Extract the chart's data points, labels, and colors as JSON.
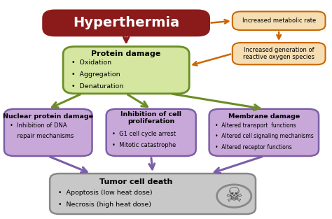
{
  "title": "Hyperthermia",
  "title_bg": "#8B1A1A",
  "title_text_color": "white",
  "protein_damage_title": "Protein damage",
  "protein_damage_items": [
    "Oxidation",
    "Aggregation",
    "Denaturation"
  ],
  "protein_damage_bg": "#d4e6a0",
  "protein_damage_border": "#6b8e23",
  "metabolic_rate_text": "Increased metabolic rate",
  "metabolic_rate_bg": "#f5deb3",
  "metabolic_rate_border": "#cc6600",
  "reactive_oxygen_text": "Increased generation of\nreactive oxygen species",
  "reactive_oxygen_bg": "#f5deb3",
  "reactive_oxygen_border": "#cc6600",
  "nuclear_title": "Nuclear protein damage",
  "nuclear_items": [
    "Inhibition of DNA\nrepair mechanisms"
  ],
  "nuclear_bg": "#c8a8d8",
  "nuclear_border": "#7b5ea7",
  "inhibition_title": "Inhibition of cell\nproliferation",
  "inhibition_items": [
    "G1 cell cycle arrest",
    "Mitotic catastrophe"
  ],
  "inhibition_bg": "#c8a8d8",
  "inhibition_border": "#7b5ea7",
  "membrane_title": "Membrane damage",
  "membrane_items": [
    "Altered transport  functions",
    "Altered cell signaling mechanisms",
    "Altered receptor functions"
  ],
  "membrane_bg": "#c8a8d8",
  "membrane_border": "#7b5ea7",
  "tumor_title": "Tumor cell death",
  "tumor_items": [
    "Apoptosis (low heat dose)",
    "Necrosis (high heat dose)"
  ],
  "tumor_bg": "#c8c8c8",
  "tumor_border": "#888888",
  "arrow_dark_red": "#8B1A1A",
  "arrow_green": "#6b8e23",
  "arrow_purple": "#7b5ea7",
  "arrow_orange": "#cc6600",
  "bg_color": "white",
  "fig_w": 4.74,
  "fig_h": 3.13,
  "dpi": 100
}
